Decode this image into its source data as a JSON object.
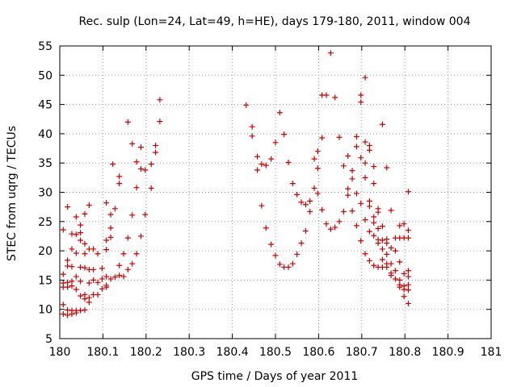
{
  "chart_data": {
    "type": "scatter",
    "title": "Rec. sulp (Lon=24, Lat=49, h=HE), days 179-180, 2011, window 004",
    "xlabel": "GPS time / Days of year 2011",
    "ylabel": "STEC from uqrg / TECUs",
    "xlim": [
      180,
      181
    ],
    "ylim": [
      5,
      55
    ],
    "grid": true,
    "marker": "+",
    "color": "#cc0000",
    "xticks": [
      180,
      180.1,
      180.2,
      180.3,
      180.4,
      180.5,
      180.6,
      180.7,
      180.8,
      180.9,
      181
    ],
    "xtick_labels": [
      "180",
      "180.1",
      "180.2",
      "180.3",
      "180.4",
      "180.5",
      "180.6",
      "180.7",
      "180.8",
      "180.9",
      "181"
    ],
    "yticks": [
      5,
      10,
      15,
      20,
      25,
      30,
      35,
      40,
      45,
      50,
      55
    ],
    "ytick_labels": [
      "5",
      "10",
      "15",
      "20",
      "25",
      "30",
      "35",
      "40",
      "45",
      "50",
      "55"
    ],
    "points": [
      [
        180.008,
        23.6
      ],
      [
        180.008,
        16.0
      ],
      [
        180.008,
        14.5
      ],
      [
        180.008,
        13.8
      ],
      [
        180.008,
        10.8
      ],
      [
        180.008,
        9.2
      ],
      [
        180.018,
        27.5
      ],
      [
        180.018,
        18.4
      ],
      [
        180.018,
        17.4
      ],
      [
        180.018,
        14.6
      ],
      [
        180.018,
        13.8
      ],
      [
        180.018,
        9.9
      ],
      [
        180.018,
        9.0
      ],
      [
        180.028,
        22.9
      ],
      [
        180.028,
        20.3
      ],
      [
        180.028,
        17.3
      ],
      [
        180.028,
        14.8
      ],
      [
        180.028,
        14.0
      ],
      [
        180.028,
        9.8
      ],
      [
        180.028,
        9.2
      ],
      [
        180.038,
        25.8
      ],
      [
        180.038,
        22.8
      ],
      [
        180.038,
        19.6
      ],
      [
        180.038,
        15.6
      ],
      [
        180.038,
        13.4
      ],
      [
        180.038,
        9.8
      ],
      [
        180.038,
        9.4
      ],
      [
        180.048,
        24.4
      ],
      [
        180.048,
        23.1
      ],
      [
        180.048,
        21.8
      ],
      [
        180.048,
        17.2
      ],
      [
        180.048,
        14.8
      ],
      [
        180.048,
        12.3
      ],
      [
        180.048,
        9.8
      ],
      [
        180.058,
        26.3
      ],
      [
        180.058,
        21.2
      ],
      [
        180.058,
        19.5
      ],
      [
        180.058,
        17.1
      ],
      [
        180.058,
        12.5
      ],
      [
        180.058,
        11.8
      ],
      [
        180.058,
        9.9
      ],
      [
        180.068,
        27.8
      ],
      [
        180.068,
        20.3
      ],
      [
        180.068,
        16.8
      ],
      [
        180.068,
        14.5
      ],
      [
        180.068,
        12.0
      ],
      [
        180.068,
        11.2
      ],
      [
        180.078,
        20.3
      ],
      [
        180.078,
        16.8
      ],
      [
        180.078,
        15.0
      ],
      [
        180.078,
        12.5
      ],
      [
        180.088,
        19.5
      ],
      [
        180.088,
        14.6
      ],
      [
        180.088,
        12.5
      ],
      [
        180.098,
        17.0
      ],
      [
        180.098,
        15.2
      ],
      [
        180.098,
        13.5
      ],
      [
        180.108,
        28.2
      ],
      [
        180.108,
        21.8
      ],
      [
        180.108,
        20.2
      ],
      [
        180.108,
        15.6
      ],
      [
        180.108,
        14.1
      ],
      [
        180.108,
        13.8
      ],
      [
        180.118,
        26.2
      ],
      [
        180.118,
        23.9
      ],
      [
        180.118,
        22.3
      ],
      [
        180.118,
        15.2
      ],
      [
        180.123,
        34.8
      ],
      [
        180.128,
        27.2
      ],
      [
        180.128,
        15.5
      ],
      [
        180.138,
        32.7
      ],
      [
        180.138,
        31.5
      ],
      [
        180.138,
        17.5
      ],
      [
        180.138,
        15.8
      ],
      [
        180.148,
        19.5
      ],
      [
        180.148,
        15.6
      ],
      [
        180.158,
        42.0
      ],
      [
        180.158,
        22.2
      ],
      [
        180.158,
        16.8
      ],
      [
        180.168,
        38.3
      ],
      [
        180.168,
        26.1
      ],
      [
        180.168,
        17.8
      ],
      [
        180.178,
        35.2
      ],
      [
        180.178,
        30.8
      ],
      [
        180.178,
        19.5
      ],
      [
        180.188,
        37.7
      ],
      [
        180.188,
        34.0
      ],
      [
        180.188,
        22.5
      ],
      [
        180.198,
        33.8
      ],
      [
        180.198,
        26.2
      ],
      [
        180.212,
        34.8
      ],
      [
        180.212,
        30.7
      ],
      [
        180.222,
        38.0
      ],
      [
        180.222,
        36.8
      ],
      [
        180.232,
        45.8
      ],
      [
        180.232,
        42.1
      ],
      [
        180.432,
        44.9
      ],
      [
        180.446,
        41.2
      ],
      [
        180.446,
        39.6
      ],
      [
        180.458,
        36.1
      ],
      [
        180.458,
        33.8
      ],
      [
        180.468,
        34.8
      ],
      [
        180.468,
        27.7
      ],
      [
        180.478,
        34.6
      ],
      [
        180.478,
        23.9
      ],
      [
        180.49,
        35.7
      ],
      [
        180.49,
        21.1
      ],
      [
        180.5,
        38.5
      ],
      [
        180.5,
        19.2
      ],
      [
        180.51,
        43.6
      ],
      [
        180.51,
        17.7
      ],
      [
        180.52,
        39.9
      ],
      [
        180.52,
        17.2
      ],
      [
        180.53,
        35.1
      ],
      [
        180.53,
        17.2
      ],
      [
        180.54,
        31.5
      ],
      [
        180.54,
        17.8
      ],
      [
        180.55,
        29.6
      ],
      [
        180.55,
        19.4
      ],
      [
        180.56,
        28.3
      ],
      [
        180.56,
        21.3
      ],
      [
        180.57,
        27.9
      ],
      [
        180.57,
        23.4
      ],
      [
        180.58,
        28.5
      ],
      [
        180.58,
        26.7
      ],
      [
        180.59,
        35.7
      ],
      [
        180.59,
        30.7
      ],
      [
        180.598,
        37.0
      ],
      [
        180.598,
        34.1
      ],
      [
        180.598,
        29.8
      ],
      [
        180.608,
        46.6
      ],
      [
        180.608,
        39.3
      ],
      [
        180.608,
        27.0
      ],
      [
        180.618,
        46.6
      ],
      [
        180.618,
        24.6
      ],
      [
        180.628,
        53.8
      ],
      [
        180.628,
        23.7
      ],
      [
        180.638,
        46.2
      ],
      [
        180.638,
        24.0
      ],
      [
        180.648,
        39.4
      ],
      [
        180.648,
        25.0
      ],
      [
        180.658,
        34.5
      ],
      [
        180.658,
        26.7
      ],
      [
        180.668,
        36.2
      ],
      [
        180.668,
        30.6
      ],
      [
        180.668,
        29.5
      ],
      [
        180.678,
        33.7
      ],
      [
        180.678,
        32.3
      ],
      [
        180.678,
        26.8
      ],
      [
        180.688,
        39.5
      ],
      [
        180.688,
        37.8
      ],
      [
        180.688,
        29.8
      ],
      [
        180.688,
        24.3
      ],
      [
        180.698,
        46.6
      ],
      [
        180.698,
        45.4
      ],
      [
        180.698,
        35.9
      ],
      [
        180.698,
        28.1
      ],
      [
        180.698,
        21.7
      ],
      [
        180.708,
        49.6
      ],
      [
        180.708,
        38.6
      ],
      [
        180.708,
        35.0
      ],
      [
        180.708,
        32.5
      ],
      [
        180.708,
        25.3
      ],
      [
        180.708,
        19.5
      ],
      [
        180.718,
        38.0
      ],
      [
        180.718,
        37.2
      ],
      [
        180.718,
        28.5
      ],
      [
        180.718,
        27.6
      ],
      [
        180.718,
        23.3
      ],
      [
        180.718,
        18.3
      ],
      [
        180.728,
        34.4
      ],
      [
        180.728,
        31.5
      ],
      [
        180.728,
        25.8
      ],
      [
        180.728,
        24.8
      ],
      [
        180.728,
        22.6
      ],
      [
        180.728,
        17.5
      ],
      [
        180.738,
        27.2
      ],
      [
        180.738,
        26.6
      ],
      [
        180.738,
        23.8
      ],
      [
        180.738,
        21.9
      ],
      [
        180.738,
        21.3
      ],
      [
        180.738,
        17.2
      ],
      [
        180.748,
        41.6
      ],
      [
        180.748,
        24.2
      ],
      [
        180.748,
        21.8
      ],
      [
        180.748,
        20.3
      ],
      [
        180.748,
        18.5
      ],
      [
        180.748,
        17.2
      ],
      [
        180.758,
        34.2
      ],
      [
        180.758,
        22.0
      ],
      [
        180.758,
        21.3
      ],
      [
        180.758,
        19.4
      ],
      [
        180.758,
        17.8
      ],
      [
        180.758,
        17.2
      ],
      [
        180.768,
        26.9
      ],
      [
        180.768,
        20.5
      ],
      [
        180.768,
        17.8
      ],
      [
        180.768,
        16.2
      ],
      [
        180.768,
        15.8
      ],
      [
        180.778,
        22.2
      ],
      [
        180.778,
        20.0
      ],
      [
        180.778,
        16.6
      ],
      [
        180.778,
        15.2
      ],
      [
        180.788,
        24.3
      ],
      [
        180.788,
        22.2
      ],
      [
        180.788,
        18.1
      ],
      [
        180.788,
        15.0
      ],
      [
        180.788,
        14.2
      ],
      [
        180.788,
        13.8
      ],
      [
        180.798,
        24.6
      ],
      [
        180.798,
        22.2
      ],
      [
        180.798,
        16.1
      ],
      [
        180.798,
        14.0
      ],
      [
        180.798,
        13.4
      ],
      [
        180.798,
        12.2
      ],
      [
        180.808,
        30.1
      ],
      [
        180.808,
        23.5
      ],
      [
        180.808,
        22.2
      ],
      [
        180.808,
        16.6
      ],
      [
        180.808,
        15.6
      ],
      [
        180.808,
        14.2
      ],
      [
        180.808,
        13.3
      ],
      [
        180.808,
        11.0
      ]
    ]
  }
}
